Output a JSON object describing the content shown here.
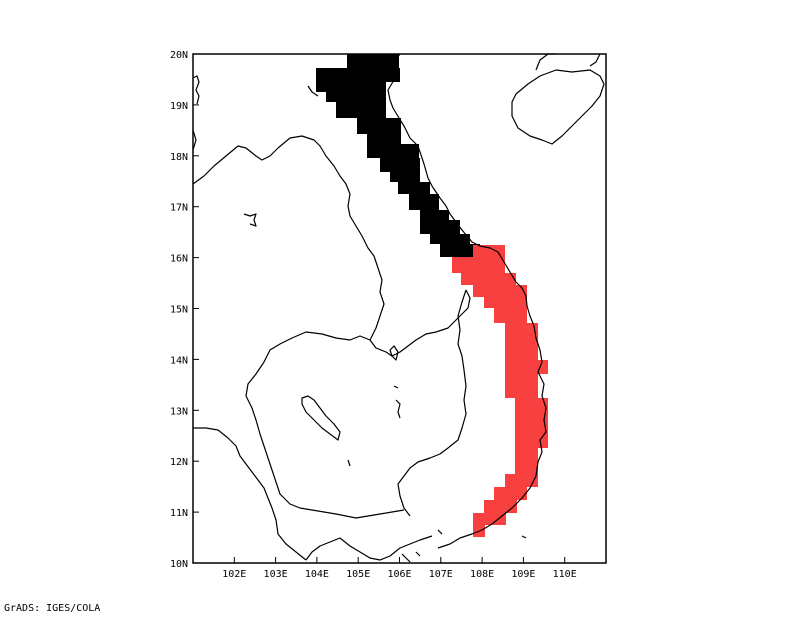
{
  "map": {
    "lon_range": [
      101,
      111
    ],
    "lat_range": [
      10,
      20
    ],
    "x_ticks": [
      {
        "lon": 102,
        "label": "102E"
      },
      {
        "lon": 103,
        "label": "103E"
      },
      {
        "lon": 104,
        "label": "104E"
      },
      {
        "lon": 105,
        "label": "105E"
      },
      {
        "lon": 106,
        "label": "106E"
      },
      {
        "lon": 107,
        "label": "107E"
      },
      {
        "lon": 108,
        "label": "108E"
      },
      {
        "lon": 109,
        "label": "109E"
      },
      {
        "lon": 110,
        "label": "110E"
      }
    ],
    "y_ticks": [
      {
        "lat": 10,
        "label": "10N"
      },
      {
        "lat": 11,
        "label": "11N"
      },
      {
        "lat": 12,
        "label": "12N"
      },
      {
        "lat": 13,
        "label": "13N"
      },
      {
        "lat": 14,
        "label": "14N"
      },
      {
        "lat": 15,
        "label": "15N"
      },
      {
        "lat": 16,
        "label": "16N"
      },
      {
        "lat": 17,
        "label": "17N"
      },
      {
        "lat": 18,
        "label": "18N"
      },
      {
        "lat": 19,
        "label": "19N"
      },
      {
        "lat": 20,
        "label": "20N"
      }
    ],
    "colors": {
      "black_region": "#000000",
      "red_region": "#f84040",
      "coast": "#000000"
    }
  },
  "footer": {
    "credit": "GrADS: IGES/COLA"
  }
}
